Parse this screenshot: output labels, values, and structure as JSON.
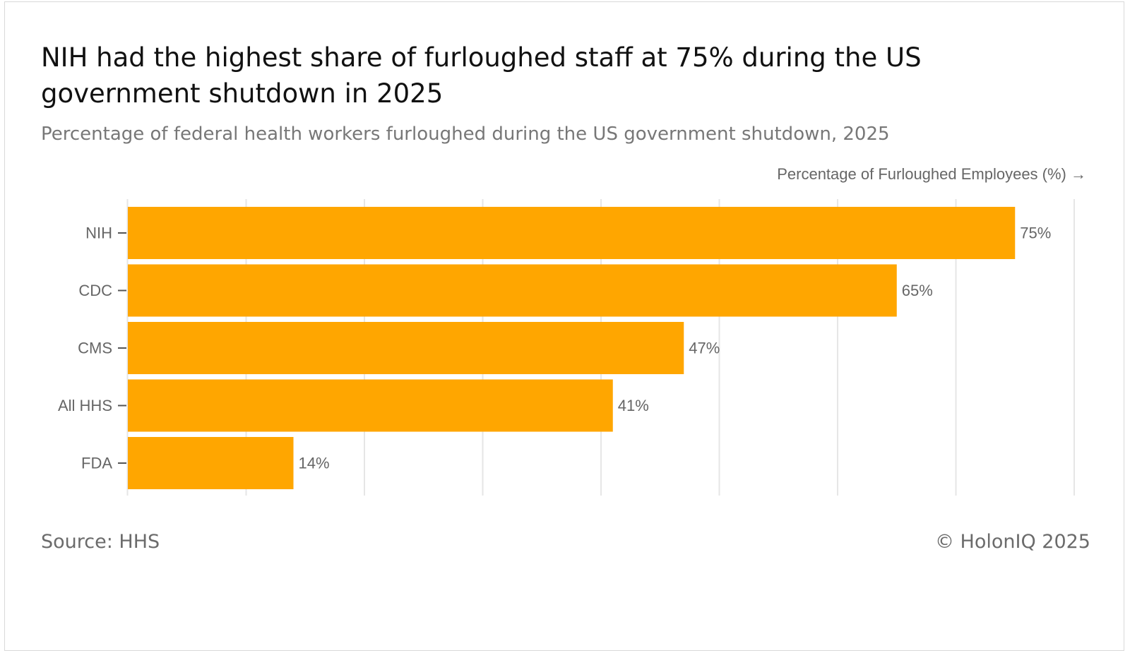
{
  "header": {
    "title": "NIH had the highest share of furloughed staff at 75% during the US government shutdown in 2025",
    "subtitle": "Percentage of federal health workers furloughed during the US government shutdown, 2025"
  },
  "footer": {
    "source": "Source: HHS",
    "copyright": "© HolonIQ 2025"
  },
  "chart_data": {
    "type": "bar",
    "orientation": "horizontal",
    "title": "NIH had the highest share of furloughed staff at 75% during the US government shutdown in 2025",
    "subtitle": "Percentage of federal health workers furloughed during the US government shutdown, 2025",
    "xlabel": "Percentage of Furloughed Employees (%) →",
    "ylabel": "",
    "categories": [
      "NIH",
      "CDC",
      "CMS",
      "All HHS",
      "FDA"
    ],
    "values": [
      75,
      65,
      47,
      41,
      14
    ],
    "data_labels": [
      "75%",
      "65%",
      "47%",
      "41%",
      "14%"
    ],
    "xlim": [
      0,
      80
    ],
    "x_gridline_step": 10,
    "grid": true,
    "bar_color": "#FFA600",
    "gridline_color": "#e6e6e6",
    "label_color": "#666666"
  }
}
